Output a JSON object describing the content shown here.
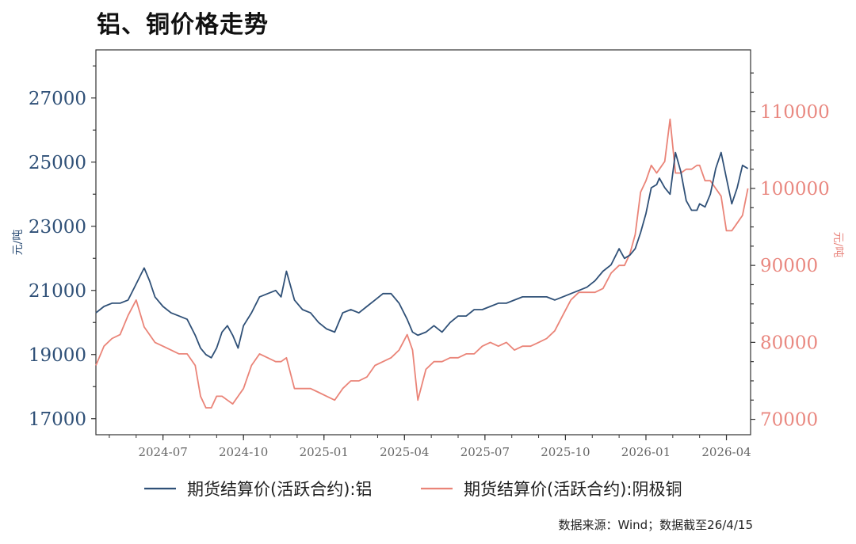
{
  "chart_data": {
    "type": "line",
    "title": "铝、铜价格走势",
    "ylabel_left": "元/吨",
    "ylabel_right": "元/吨",
    "ylim_left": [
      16500,
      28500
    ],
    "ylim_right": [
      68000,
      118000
    ],
    "yticks_left": [
      17000,
      19000,
      21000,
      23000,
      25000,
      27000
    ],
    "yticks_right": [
      70000,
      80000,
      90000,
      100000,
      110000
    ],
    "xlim": [
      0,
      24.4
    ],
    "x_ticks": [
      {
        "month": 2.5,
        "label": "2024-07"
      },
      {
        "month": 5.5,
        "label": "2024-10"
      },
      {
        "month": 8.5,
        "label": "2025-01"
      },
      {
        "month": 11.5,
        "label": "2025-04"
      },
      {
        "month": 14.5,
        "label": "2025-07"
      },
      {
        "month": 17.5,
        "label": "2025-10"
      },
      {
        "month": 20.5,
        "label": "2026-01"
      },
      {
        "month": 23.5,
        "label": "2026-04"
      }
    ],
    "x_unit": "months since 2024-04-01",
    "source": "数据来源：Wind；数据截至26/4/15",
    "series": [
      {
        "name": "期货结算价(活跃合约):铝",
        "axis": "left",
        "color": "#2f5077",
        "x": [
          0.0,
          0.3,
          0.6,
          0.9,
          1.2,
          1.5,
          1.8,
          2.0,
          2.2,
          2.5,
          2.8,
          3.1,
          3.4,
          3.7,
          3.9,
          4.1,
          4.3,
          4.5,
          4.7,
          4.9,
          5.1,
          5.3,
          5.5,
          5.8,
          6.1,
          6.4,
          6.7,
          6.9,
          7.1,
          7.4,
          7.7,
          8.0,
          8.3,
          8.6,
          8.9,
          9.2,
          9.5,
          9.8,
          10.1,
          10.4,
          10.7,
          11.0,
          11.3,
          11.6,
          11.8,
          12.0,
          12.3,
          12.6,
          12.9,
          13.2,
          13.5,
          13.8,
          14.1,
          14.4,
          14.7,
          15.0,
          15.3,
          15.6,
          15.9,
          16.2,
          16.5,
          16.8,
          17.1,
          17.4,
          17.7,
          18.0,
          18.3,
          18.6,
          18.9,
          19.2,
          19.5,
          19.7,
          19.9,
          20.1,
          20.3,
          20.5,
          20.7,
          20.9,
          21.0,
          21.2,
          21.4,
          21.6,
          21.8,
          22.0,
          22.2,
          22.4,
          22.5,
          22.7,
          22.9,
          23.1,
          23.3,
          23.5,
          23.7,
          23.9,
          24.1,
          24.3
        ],
        "values": [
          20300,
          20500,
          20600,
          20600,
          20700,
          21200,
          21700,
          21300,
          20800,
          20500,
          20300,
          20200,
          20100,
          19600,
          19200,
          19000,
          18900,
          19200,
          19700,
          19900,
          19600,
          19200,
          19900,
          20300,
          20800,
          20900,
          21000,
          20800,
          21600,
          20700,
          20400,
          20300,
          20000,
          19800,
          19700,
          20300,
          20400,
          20300,
          20500,
          20700,
          20900,
          20900,
          20600,
          20100,
          19700,
          19600,
          19700,
          19900,
          19700,
          20000,
          20200,
          20200,
          20400,
          20400,
          20500,
          20600,
          20600,
          20700,
          20800,
          20800,
          20800,
          20800,
          20700,
          20800,
          20900,
          21000,
          21100,
          21300,
          21600,
          21800,
          22300,
          22000,
          22100,
          22300,
          22800,
          23400,
          24200,
          24300,
          24500,
          24200,
          24000,
          25300,
          24700,
          23800,
          23500,
          23500,
          23700,
          23600,
          24000,
          24800,
          25300,
          24500,
          23700,
          24200,
          24900,
          24800
        ]
      },
      {
        "name": "期货结算价(活跃合约):阴极铜",
        "axis": "right",
        "color": "#ea8478",
        "x": [
          0.0,
          0.3,
          0.6,
          0.9,
          1.2,
          1.5,
          1.8,
          2.0,
          2.2,
          2.5,
          2.8,
          3.1,
          3.4,
          3.7,
          3.9,
          4.1,
          4.3,
          4.5,
          4.7,
          4.9,
          5.1,
          5.3,
          5.5,
          5.8,
          6.1,
          6.4,
          6.7,
          6.9,
          7.1,
          7.4,
          7.7,
          8.0,
          8.3,
          8.6,
          8.9,
          9.2,
          9.5,
          9.8,
          10.1,
          10.4,
          10.7,
          11.0,
          11.3,
          11.6,
          11.8,
          12.0,
          12.3,
          12.6,
          12.9,
          13.2,
          13.5,
          13.8,
          14.1,
          14.4,
          14.7,
          15.0,
          15.3,
          15.6,
          15.9,
          16.2,
          16.5,
          16.8,
          17.1,
          17.4,
          17.7,
          18.0,
          18.3,
          18.6,
          18.9,
          19.2,
          19.5,
          19.7,
          19.9,
          20.1,
          20.3,
          20.5,
          20.7,
          20.9,
          21.0,
          21.2,
          21.4,
          21.6,
          21.8,
          22.0,
          22.2,
          22.4,
          22.5,
          22.7,
          22.9,
          23.1,
          23.3,
          23.5,
          23.7,
          23.9,
          24.1,
          24.3
        ],
        "values": [
          77000,
          79500,
          80500,
          81000,
          83500,
          85500,
          82000,
          81000,
          80000,
          79500,
          79000,
          78500,
          78500,
          77000,
          73000,
          71500,
          71500,
          73000,
          73000,
          72500,
          72000,
          73000,
          74000,
          77000,
          78500,
          78000,
          77500,
          77500,
          78000,
          74000,
          74000,
          74000,
          73500,
          73000,
          72500,
          74000,
          75000,
          75000,
          75500,
          77000,
          77500,
          78000,
          79000,
          81000,
          79000,
          72500,
          76500,
          77500,
          77500,
          78000,
          78000,
          78500,
          78500,
          79500,
          80000,
          79500,
          80000,
          79000,
          79500,
          79500,
          80000,
          80500,
          81500,
          83500,
          85500,
          86500,
          86500,
          86500,
          87000,
          89000,
          90000,
          90000,
          91500,
          94000,
          99500,
          101000,
          103000,
          102000,
          102500,
          103500,
          109000,
          102000,
          102000,
          102500,
          102500,
          103000,
          103000,
          101000,
          101000,
          100000,
          99000,
          94500,
          94500,
          95500,
          96500,
          100000
        ]
      }
    ]
  }
}
